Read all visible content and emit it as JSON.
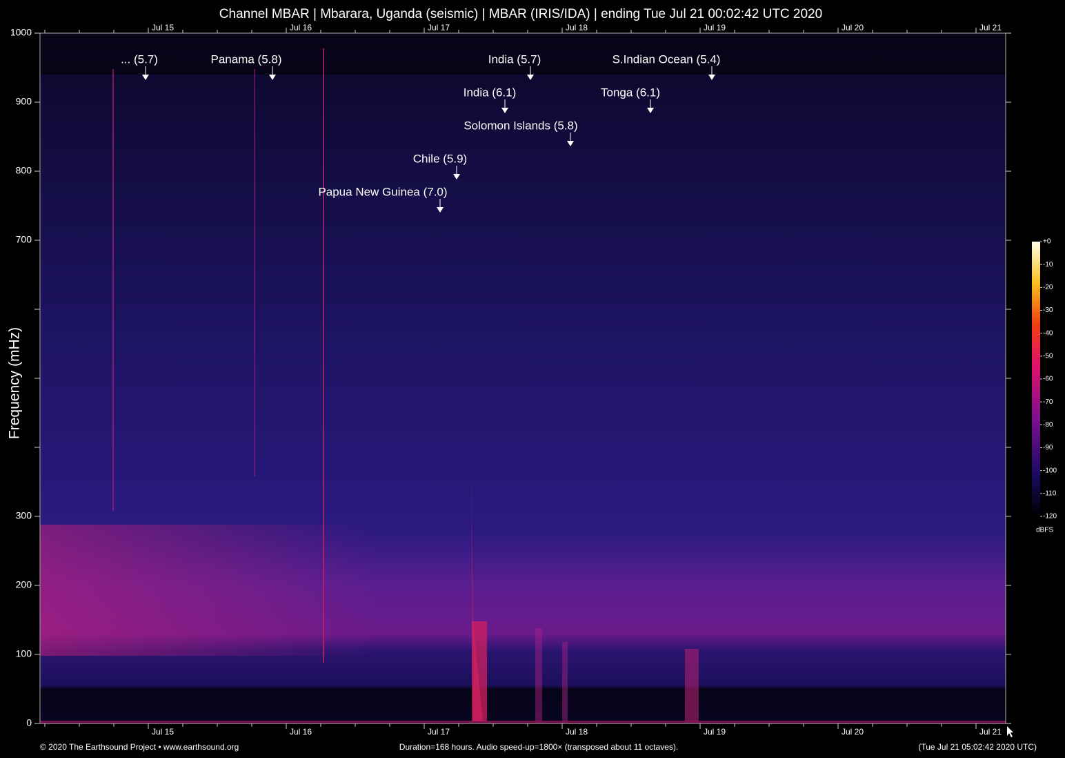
{
  "chart_data": {
    "type": "spectrogram",
    "title": "Channel MBAR | Mbarara, Uganda (seismic) | MBAR (IRIS/IDA) | ending Tue Jul 21 00:02:42 UTC 2020",
    "y_label": "Frequency (mHz)",
    "ylim": [
      0,
      1000
    ],
    "yticks": [
      0,
      100,
      200,
      300,
      700,
      800,
      900,
      1000
    ],
    "y_minor_ticks": [
      400,
      500,
      600
    ],
    "xticks": [
      "Jul 15",
      "Jul 16",
      "Jul 17",
      "Jul 18",
      "Jul 19",
      "Jul 20",
      "Jul 21"
    ],
    "annotations": [
      "... (5.7)",
      "Panama (5.8)",
      "India (5.7)",
      "S.Indian Ocean (5.4)",
      "India (6.1)",
      "Tonga (6.1)",
      "Solomon Islands (5.8)",
      "Chile (5.9)",
      "Papua New Guinea (7.0)"
    ],
    "colorbar": {
      "label": "dBFS",
      "lim": [
        -120,
        0
      ],
      "ticks": [
        {
          "value": 0,
          "label": "+0"
        },
        -10,
        -20,
        -30,
        -40,
        -50,
        -60,
        -70,
        -80,
        -90,
        -100,
        -110,
        -120
      ]
    },
    "footer_left": "© 2020 The Earthsound Project • www.earthsound.org",
    "footer_center": "Duration=168 hours. Audio speed-up=1800× (transposed about 11 octaves).",
    "footer_right": "(Tue Jul 21 05:02:42 2020 UTC)"
  }
}
